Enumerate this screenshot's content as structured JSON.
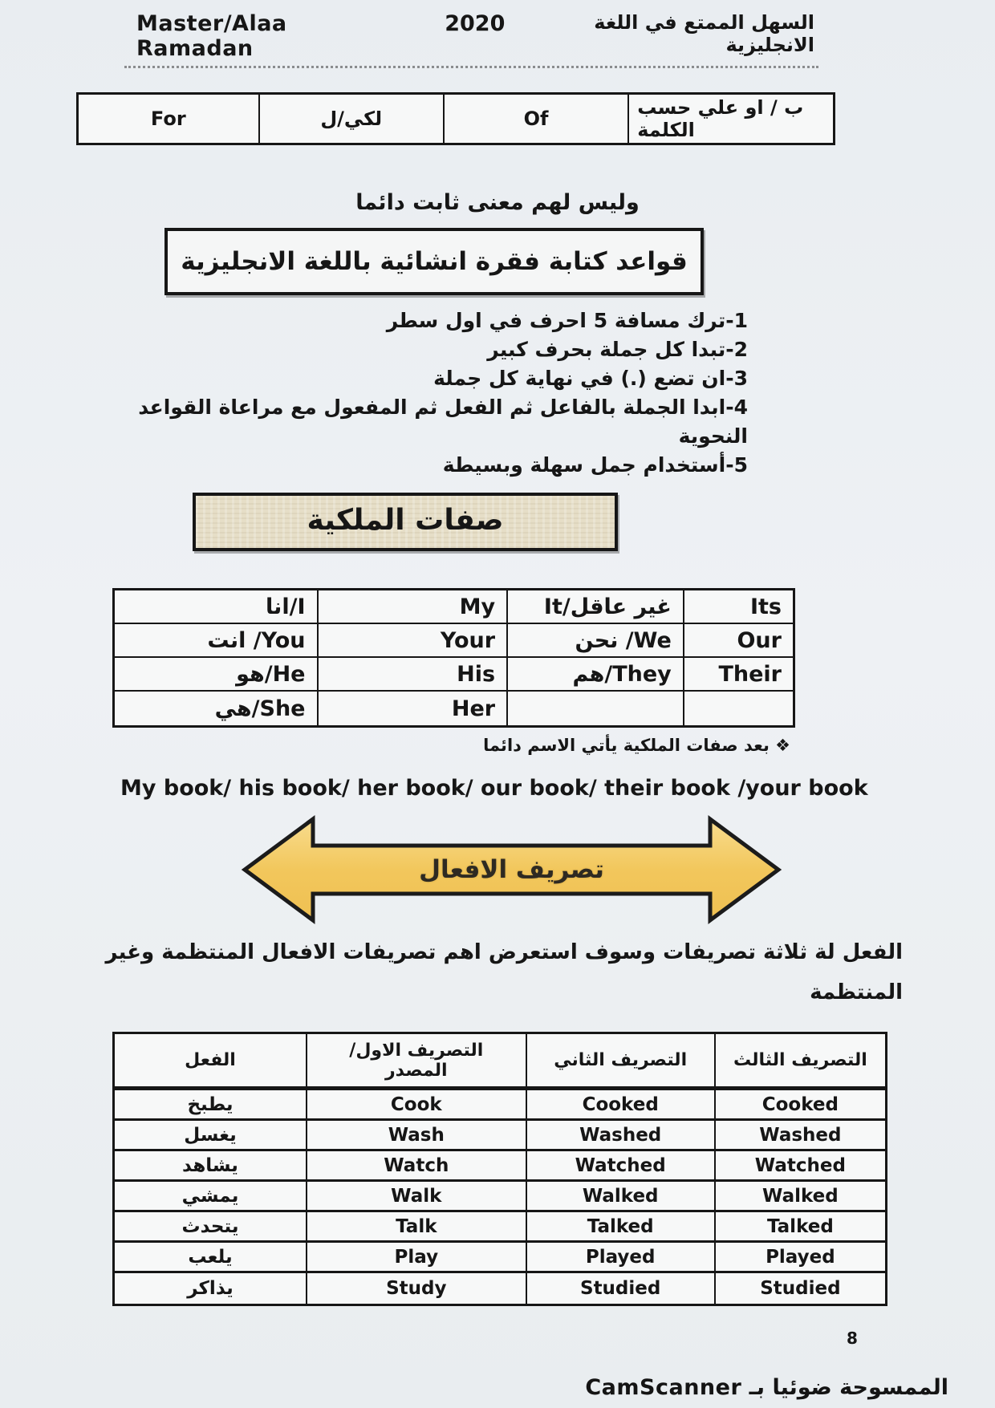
{
  "page": {
    "number": "8"
  },
  "header": {
    "name": "Master/Alaa Ramadan",
    "year": "2020",
    "title_ar": "السهل الممتع في اللغة الانجليزية"
  },
  "word_meanings": {
    "cells": [
      "For",
      "لكي/ل",
      "Of",
      "ب / او علي حسب الكلمة"
    ]
  },
  "no_fixed_meaning_note": "وليس لهم معنى ثابت دائما",
  "paragraph_rules": {
    "title": "قواعد كتابة فقرة انشائية باللغة الانجليزية",
    "items": [
      "1-ترك مسافة 5 احرف في اول سطر",
      "2-تبدا كل جملة بحرف كبير",
      "3-ان تضع (.) في نهاية كل جملة",
      "4-ابدا الجملة بالفاعل ثم الفعل ثم المفعول مع مراعاة القواعد النحوية",
      "5-أستخدام جمل سهلة وبسيطة"
    ]
  },
  "possessives": {
    "title": "صفات الملكية",
    "rows": [
      [
        "انا/I",
        "My",
        "It/غير عاقل",
        "Its"
      ],
      [
        "انت /You",
        "Your",
        "نحن /We",
        "Our"
      ],
      [
        "هو/He",
        "His",
        "هم/They",
        "Their"
      ],
      [
        "هي/She",
        "Her",
        "",
        ""
      ]
    ],
    "note_bullet": "❖",
    "note": "بعد صفات الملكية يأتي الاسم دائما",
    "examples": "My book/ his book/ her book/ our book/ their book /your book"
  },
  "conjugation": {
    "banner": "تصريف الافعال",
    "banner_fill": "#f2c75c",
    "banner_fill_light": "#f8dc8e",
    "intro": "الفعل لة ثلاثة تصريفات وسوف استعرض اهم تصريفات الافعال المنتظمة وغير\nالمنتظمة",
    "table": {
      "headers": [
        "الفعل",
        "التصريف الاول/\nالمصدر",
        "التصريف الثاني",
        "التصريف الثالث"
      ],
      "rows": [
        [
          "يطبخ",
          "Cook",
          "Cooked",
          "Cooked"
        ],
        [
          "يغسل",
          "Wash",
          "Washed",
          "Washed"
        ],
        [
          "يشاهد",
          "Watch",
          "Watched",
          "Watched"
        ],
        [
          "يمشي",
          "Walk",
          "Walked",
          "Walked"
        ],
        [
          "يتحدث",
          "Talk",
          "Talked",
          "Talked"
        ],
        [
          "يلعب",
          "Play",
          "Played",
          "Played"
        ],
        [
          "يذاكر",
          "Study",
          "Studied",
          "Studied"
        ]
      ]
    }
  },
  "footer": {
    "scanned_by": "الممسوحة ضوئيا بـ CamScanner"
  }
}
